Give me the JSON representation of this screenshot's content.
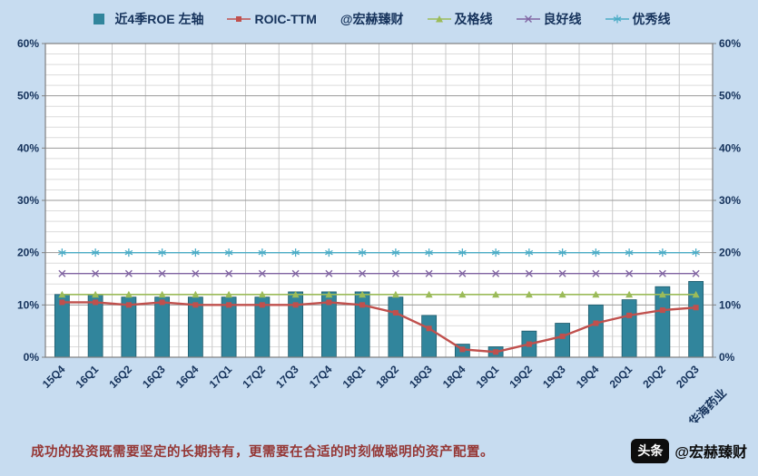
{
  "legend": {
    "items": [
      {
        "label": "近4季ROE 左轴",
        "marker": "bar",
        "color": "#31859c"
      },
      {
        "label": "ROIC-TTM",
        "marker": "square",
        "color": "#c0504d"
      },
      {
        "label": "@宏赫臻财",
        "marker": "none",
        "color": "#15325b"
      },
      {
        "label": "及格线",
        "marker": "triangle",
        "color": "#9bbb59"
      },
      {
        "label": "良好线",
        "marker": "x",
        "color": "#8064a2"
      },
      {
        "label": "优秀线",
        "marker": "asterisk",
        "color": "#4bacc6"
      }
    ]
  },
  "chart_data": {
    "type": "bar",
    "title": "",
    "legend_position": "top",
    "grid": true,
    "categories": [
      "15Q4",
      "16Q1",
      "16Q2",
      "16Q3",
      "16Q4",
      "17Q1",
      "17Q2",
      "17Q3",
      "17Q4",
      "18Q1",
      "18Q2",
      "18Q3",
      "18Q4",
      "19Q1",
      "19Q2",
      "19Q3",
      "19Q4",
      "20Q1",
      "20Q2",
      "20Q3"
    ],
    "series": [
      {
        "name": "近4季ROE 左轴",
        "type": "bar",
        "color": "#31859c",
        "edge": "#1f5a6b",
        "values": [
          12,
          12,
          11.5,
          11.5,
          11.5,
          11.5,
          11.5,
          12.5,
          12.5,
          12.5,
          11.5,
          8,
          2.5,
          2,
          5,
          6.5,
          10,
          11,
          13.5,
          14.5
        ]
      },
      {
        "name": "ROIC-TTM",
        "type": "line",
        "marker": "square",
        "color": "#c0504d",
        "width": 2.4,
        "values": [
          10.5,
          10.5,
          10,
          10.5,
          10,
          10,
          10,
          10,
          10.5,
          10,
          8.5,
          5.5,
          1.5,
          1,
          2.5,
          4,
          6.5,
          8,
          9,
          9.5
        ]
      },
      {
        "name": "及格线",
        "type": "line",
        "marker": "triangle",
        "color": "#9bbb59",
        "width": 1.6,
        "constant": 12
      },
      {
        "name": "良好线",
        "type": "line",
        "marker": "x",
        "color": "#8064a2",
        "width": 1.4,
        "constant": 16
      },
      {
        "name": "优秀线",
        "type": "line",
        "marker": "asterisk",
        "color": "#4bacc6",
        "width": 1.4,
        "constant": 20
      }
    ],
    "ylim": [
      0,
      60
    ],
    "y_major_step": 10,
    "y_minor_step": 2,
    "y_tick_suffix": "%",
    "y_axis_sides": "both",
    "xlabel": "",
    "ylabel": "",
    "series_label": "华海药业"
  },
  "style": {
    "axis_text_color": "#15325b",
    "plot_bg": "#ffffff",
    "border_color": "#7f7f7f",
    "major_grid_color": "#9a9a9a",
    "minor_grid_color": "#dcdcdc",
    "vert_grid_color": "#c9c9c9"
  },
  "footer": {
    "message": "成功的投资既需要坚定的长期持有，更需要在合适的时刻做聪明的资产配置。",
    "badge_label": "头条",
    "handle": "@宏赫臻财"
  }
}
